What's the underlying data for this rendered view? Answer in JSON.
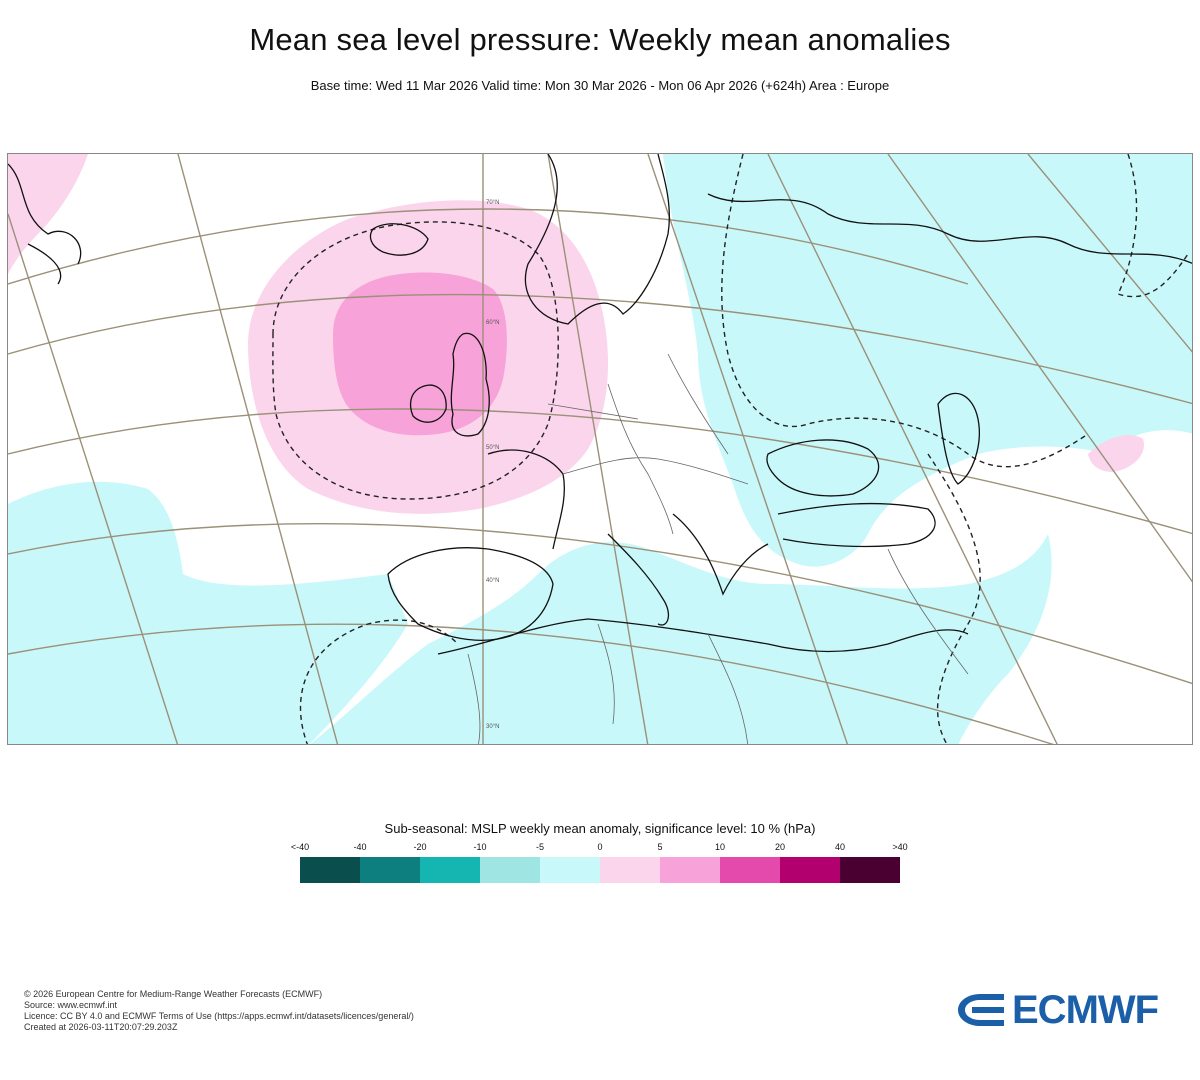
{
  "header": {
    "title": "Mean sea level pressure: Weekly mean anomalies",
    "subtitle": "Base time: Wed 11 Mar 2026 Valid time: Mon 30 Mar 2026 - Mon 06 Apr 2026 (+624h) Area : Europe"
  },
  "map": {
    "area": "Europe",
    "projection_graticule_labels": [
      "70°N",
      "60°N",
      "50°N",
      "40°N",
      "30°N"
    ],
    "anomaly_regions": [
      {
        "label": "positive anomaly centre",
        "location": "British Isles / North Atlantic",
        "class": "5 to 10"
      },
      {
        "label": "positive anomaly halo",
        "location": "Iceland to North Sea",
        "class": "0 to 5"
      },
      {
        "label": "negative anomaly",
        "location": "Eastern Europe, Mediterranean, subtropical Atlantic",
        "class": "-5 to 0"
      }
    ],
    "colors": {
      "pos_weak": "#fbd5ec",
      "pos_mid": "#f7a2d8",
      "neg_weak": "#c9f8fa",
      "coast": "#111111",
      "graticule": "#9b9078",
      "borders": "#666666",
      "significance_contour": "#222222"
    }
  },
  "legend": {
    "title": "Sub-seasonal: MSLP weekly mean anomaly, significance level: 10 % (hPa)",
    "ticks": [
      "<-40",
      "-40",
      "-20",
      "-10",
      "-5",
      "0",
      "5",
      "10",
      "20",
      "40",
      ">40"
    ],
    "colors": [
      "#0a4f4e",
      "#0e7f7f",
      "#15b5b1",
      "#9fe5e4",
      "#c9f8fa",
      "#fbd5ec",
      "#f7a2d8",
      "#e34aab",
      "#b3006f",
      "#4a0030"
    ]
  },
  "footer": {
    "line1": "© 2026 European Centre for Medium-Range Weather Forecasts (ECMWF)",
    "line2": "Source: www.ecmwf.int",
    "line3": "Licence: CC BY 4.0 and ECMWF Terms of Use (https://apps.ecmwf.int/datasets/licences/general/)",
    "line4": "Created at 2026-03-11T20:07:29.203Z"
  },
  "logo": {
    "text": "ECMWF",
    "color": "#1b5fa8"
  }
}
